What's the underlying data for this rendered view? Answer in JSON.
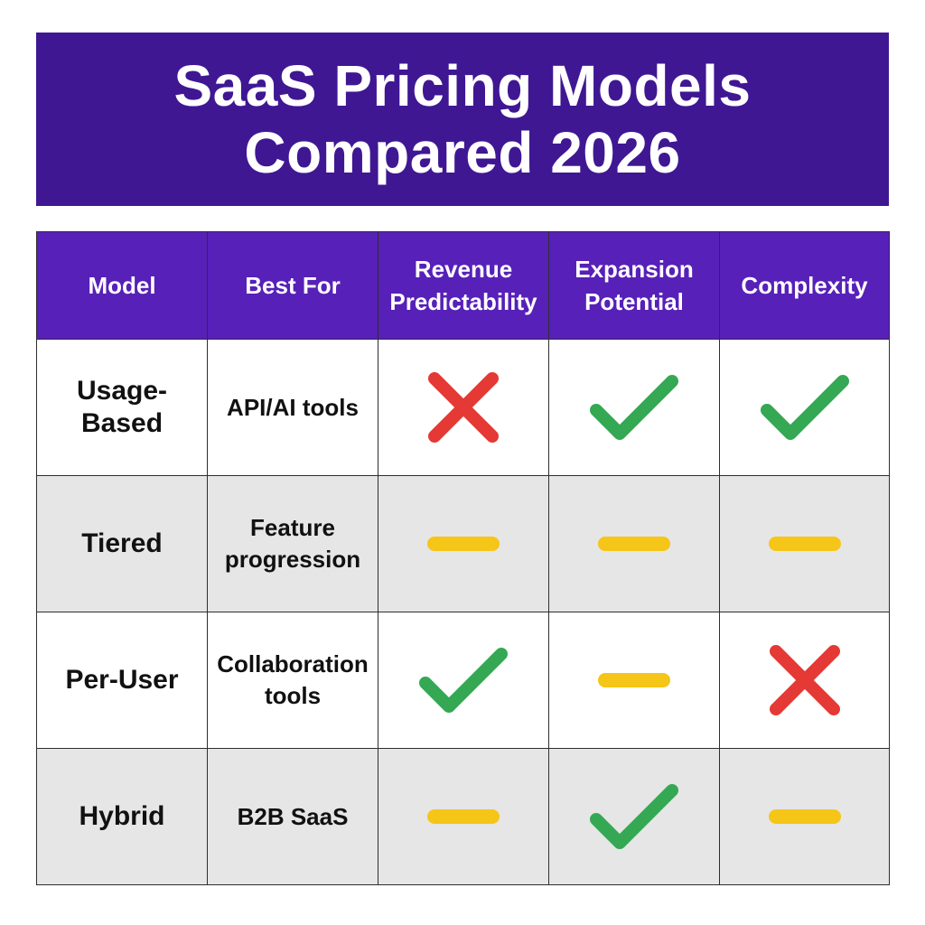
{
  "title": "SaaS Pricing Models Compared 2026",
  "colors": {
    "title_bg": "#3f1793",
    "header_bg": "#5720b8",
    "row_alt_bg": "#e6e6e6",
    "check": "#34a853",
    "cross": "#e53935",
    "dash": "#f5c518"
  },
  "headers": [
    "Model",
    "Best For",
    "Revenue Predictability",
    "Expansion Potential",
    "Complexity"
  ],
  "rows": [
    {
      "model": "Usage-Based",
      "best_for": "API/AI tools",
      "revenue_predictability": "cross",
      "expansion_potential": "check",
      "complexity": "check"
    },
    {
      "model": "Tiered",
      "best_for": "Feature progression",
      "revenue_predictability": "dash",
      "expansion_potential": "dash",
      "complexity": "dash"
    },
    {
      "model": "Per-User",
      "best_for": "Collaboration tools",
      "revenue_predictability": "check",
      "expansion_potential": "dash",
      "complexity": "cross"
    },
    {
      "model": "Hybrid",
      "best_for": "B2B SaaS",
      "revenue_predictability": "dash",
      "expansion_potential": "check",
      "complexity": "dash"
    }
  ]
}
